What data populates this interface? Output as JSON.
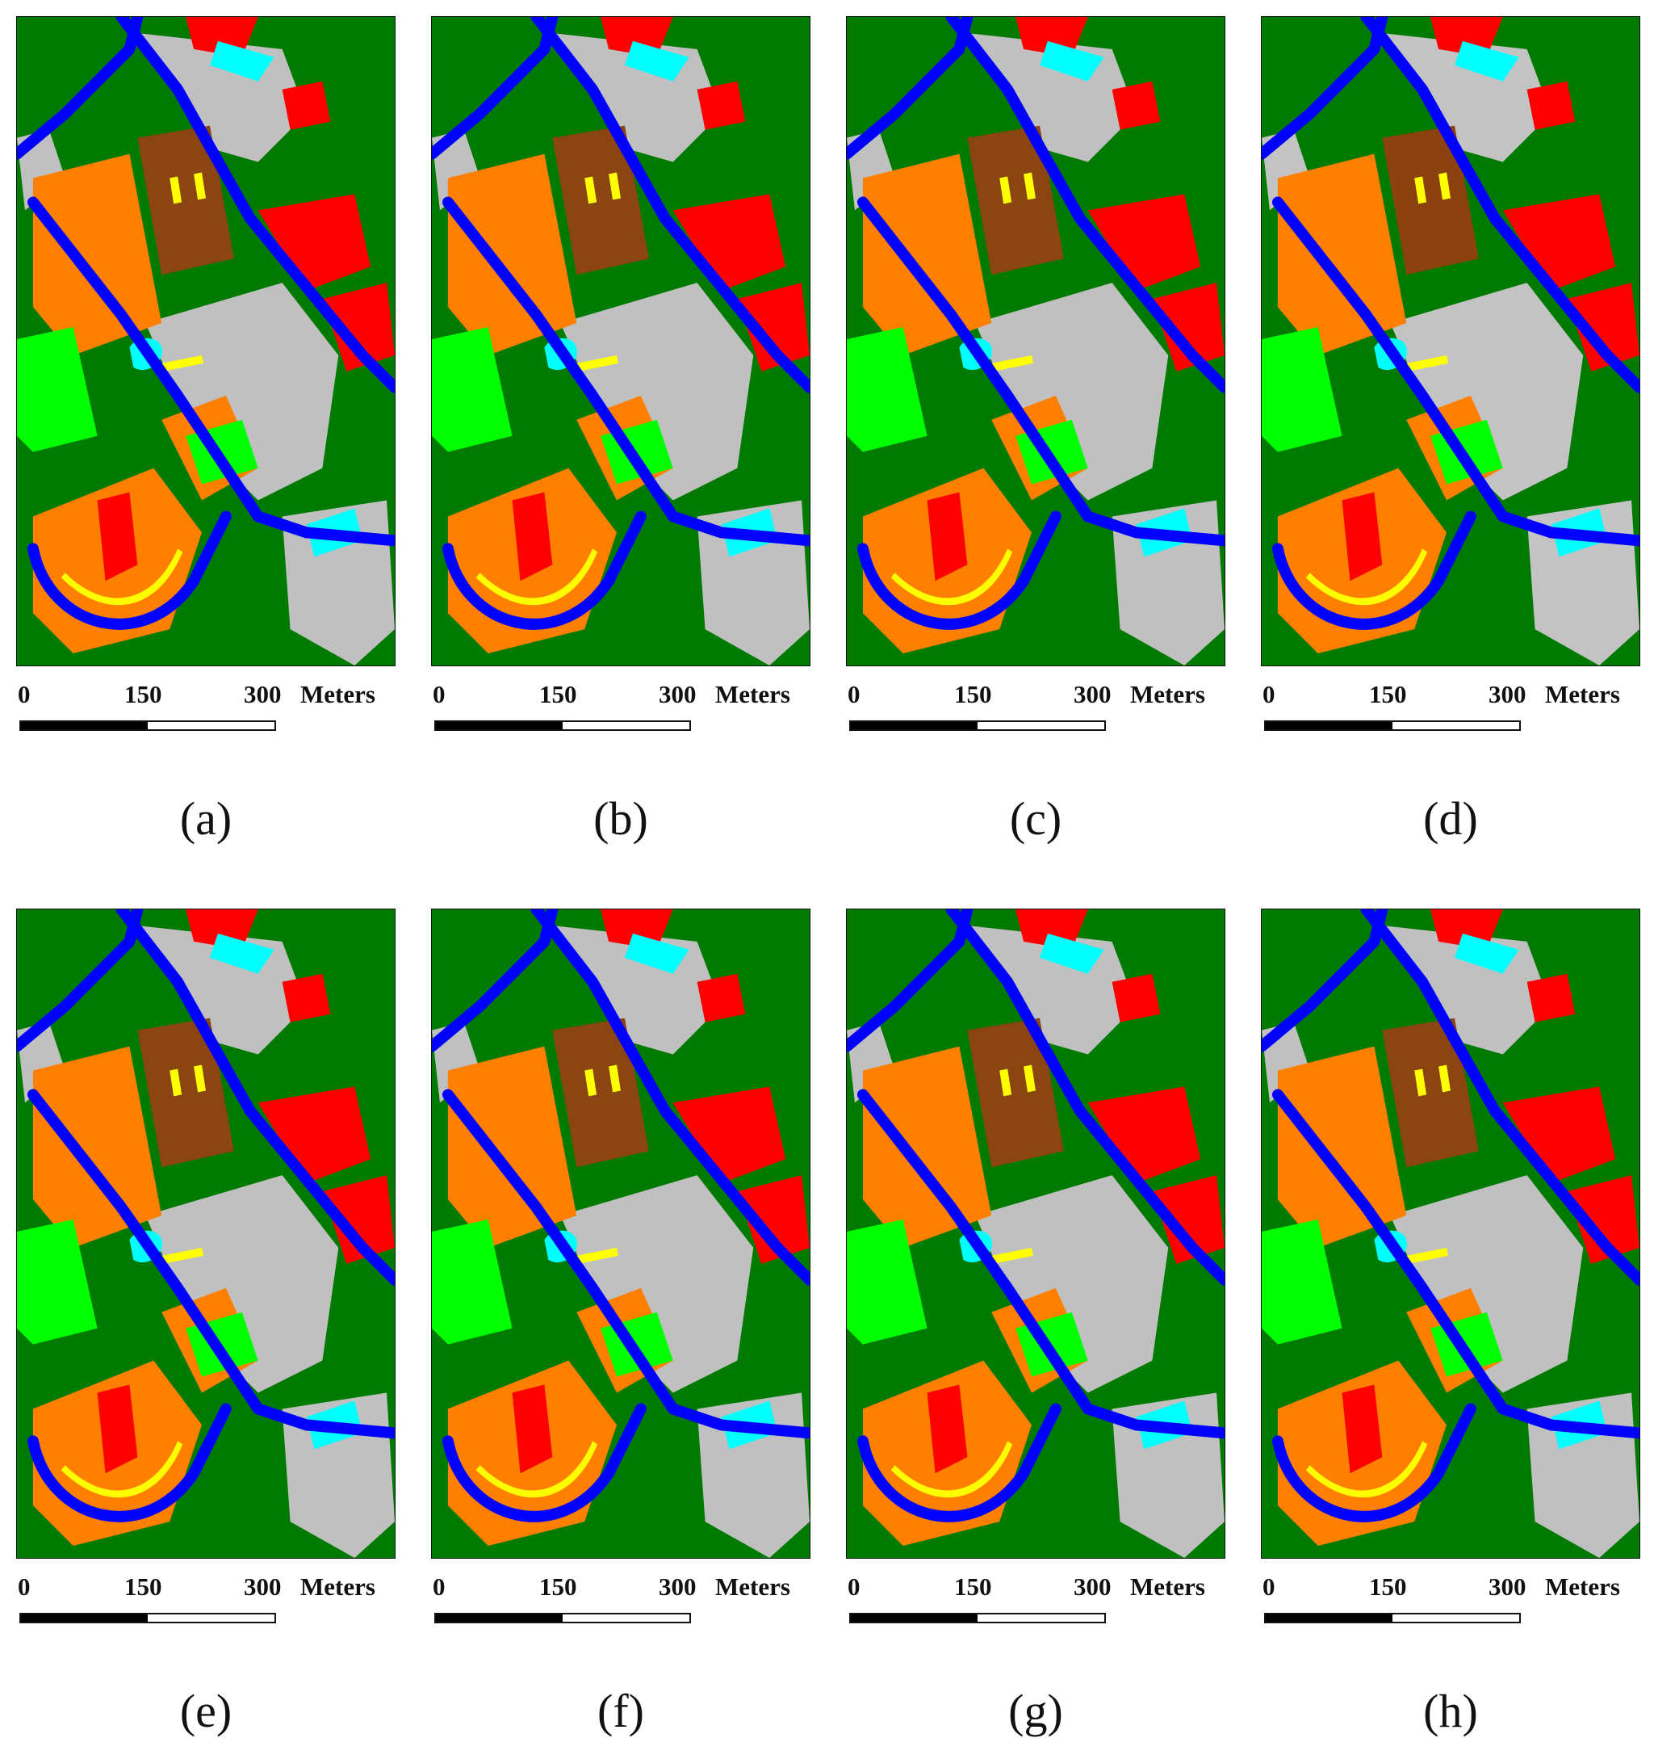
{
  "scale": {
    "label_0": "0",
    "label_150": "150",
    "label_300": "300",
    "unit": "Meters"
  },
  "panels": [
    {
      "caption": "(a)"
    },
    {
      "caption": "(b)"
    },
    {
      "caption": "(c)"
    },
    {
      "caption": "(d)"
    },
    {
      "caption": "(e)"
    },
    {
      "caption": "(f)"
    },
    {
      "caption": "(g)"
    },
    {
      "caption": "(h)"
    }
  ],
  "class_colors": {
    "meadows": "#007a00",
    "asphalt": "#c0c0c0",
    "road": "#0000ff",
    "trees": "#ff0000",
    "bare-soil": "#ff7f00",
    "bitumen": "#00ffff",
    "gravel": "#00ff00",
    "shadow": "#ffff00",
    "bricks": "#8b4513"
  }
}
